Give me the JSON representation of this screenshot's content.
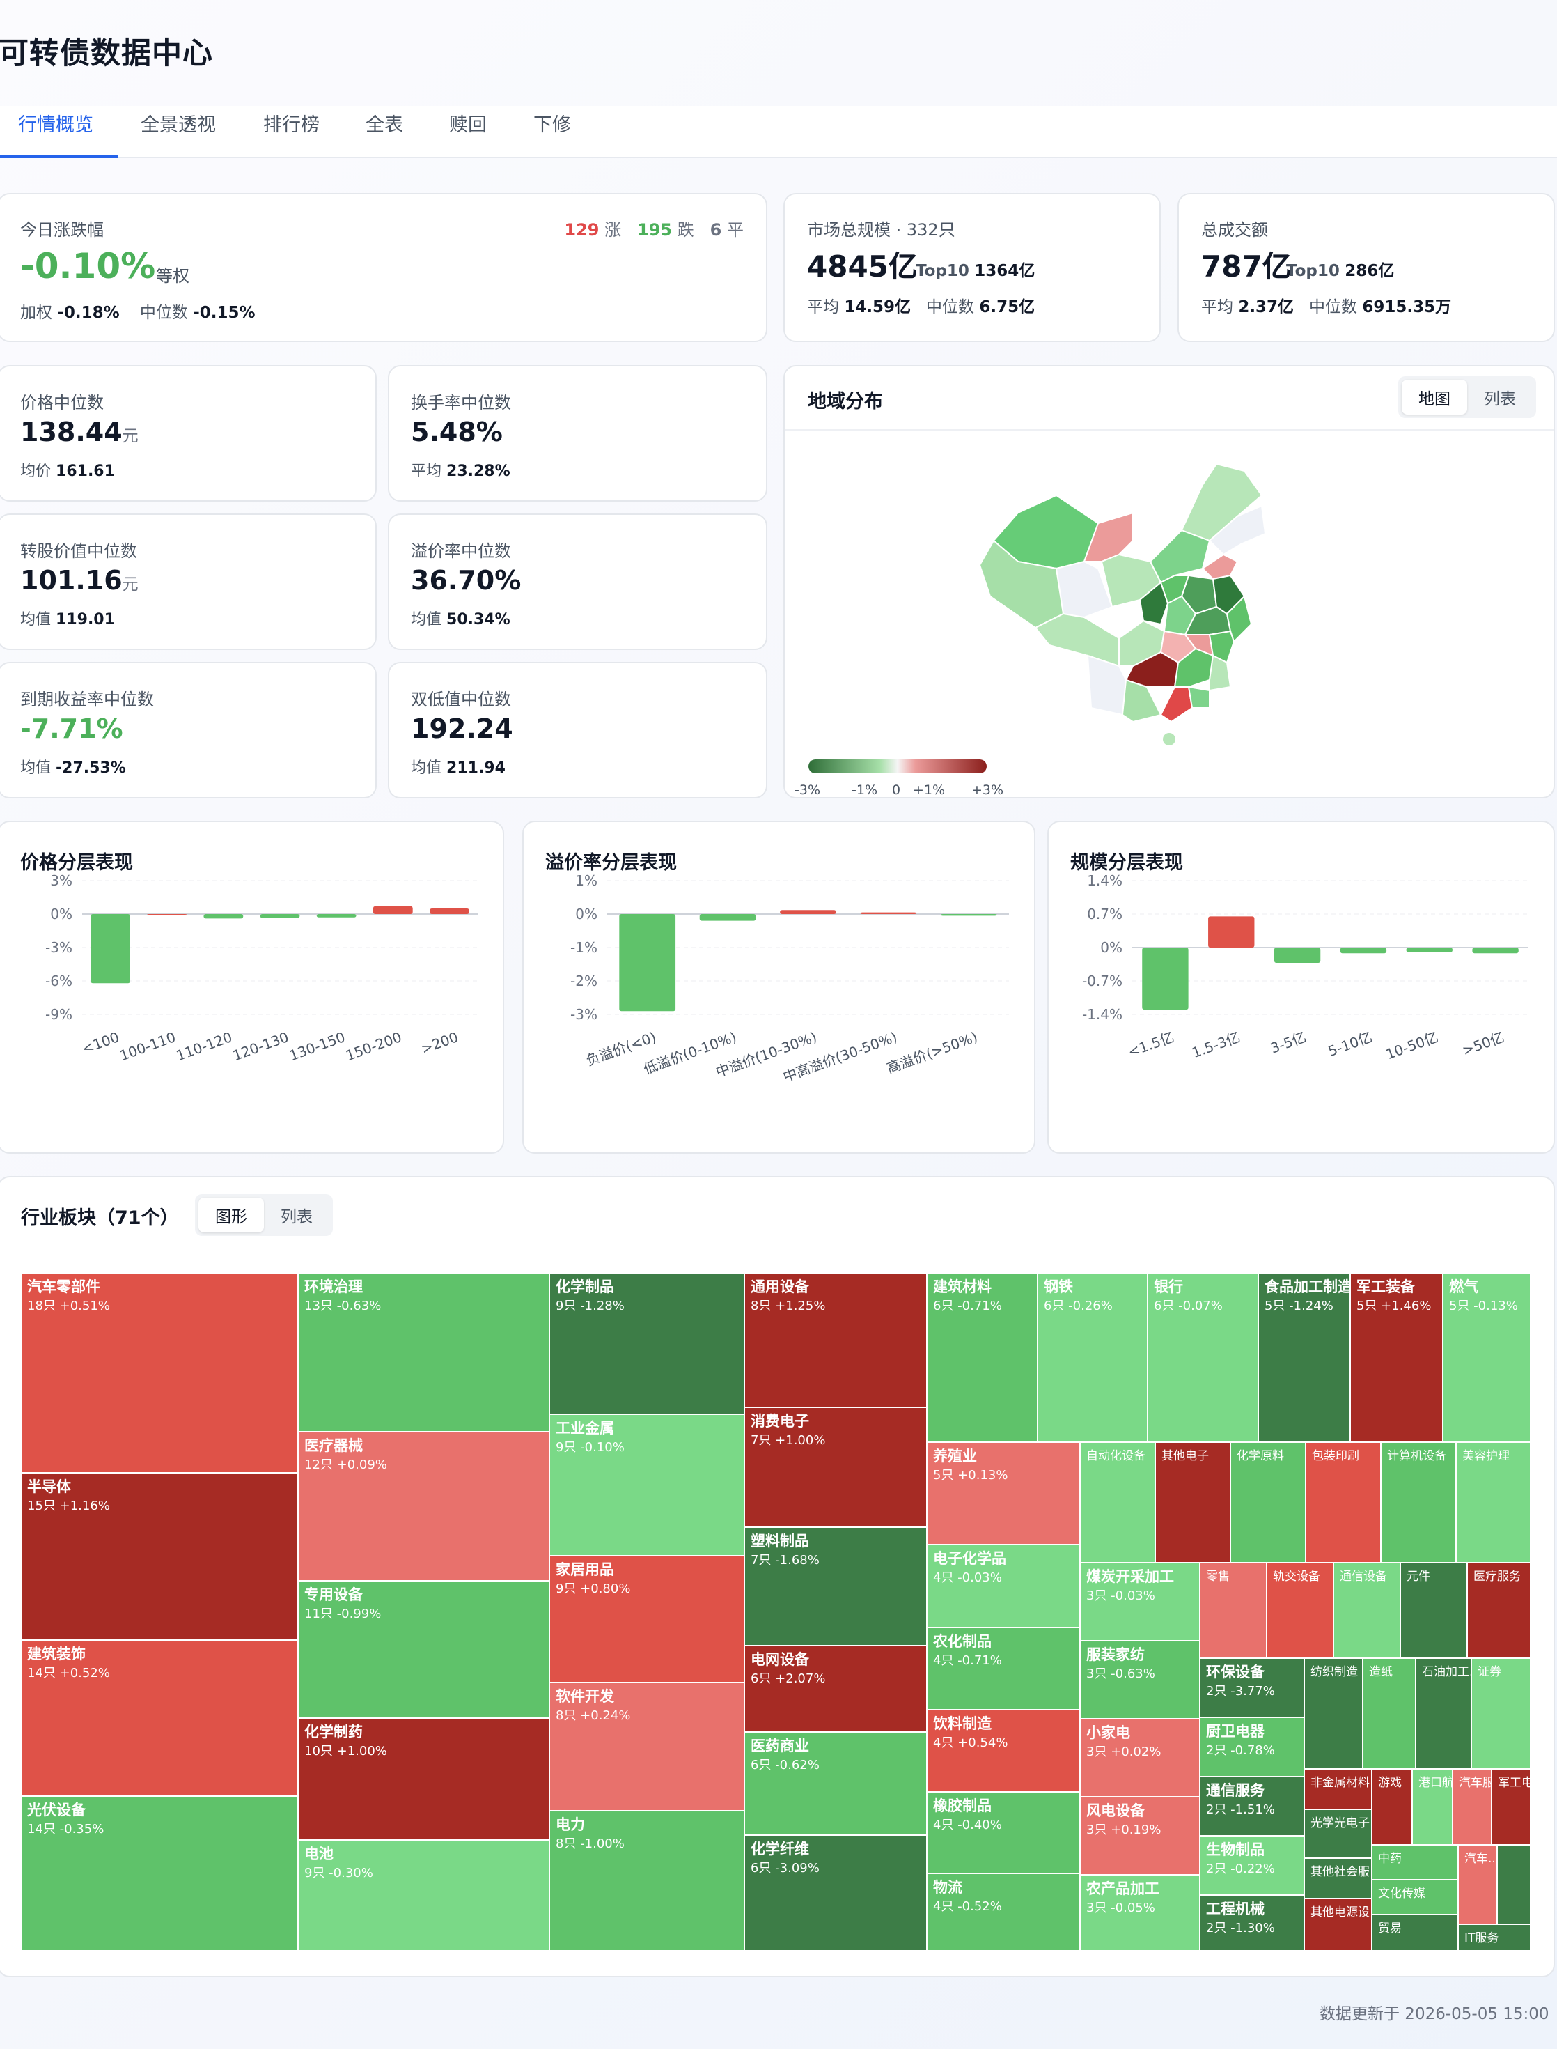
{
  "title": "可转债数据中心",
  "tabs": [
    "行情概览",
    "全景透视",
    "排行榜",
    "全表",
    "赎回",
    "下修"
  ],
  "today": {
    "label": "今日涨跌幅",
    "value": "-0.10%",
    "method": "等权",
    "up_count": "129",
    "up_label": "涨",
    "down_count": "195",
    "down_label": "跌",
    "flat_count": "6",
    "flat_label": "平",
    "weighted_label": "加权",
    "weighted": "-0.18%",
    "median_label": "中位数",
    "median": "-0.15%"
  },
  "market_size": {
    "label": "市场总规模 · 332只",
    "value": "4845亿",
    "top10_label": "Top10",
    "top10": "1364亿",
    "avg_label": "平均",
    "avg": "14.59亿",
    "median_label": "中位数",
    "median": "6.75亿"
  },
  "turnover": {
    "label": "总成交额",
    "value": "787亿",
    "top10_label": "Top10",
    "top10": "286亿",
    "avg_label": "平均",
    "avg": "2.37亿",
    "median_label": "中位数",
    "median": "6915.35万"
  },
  "stats": [
    {
      "label": "价格中位数",
      "value": "138.44",
      "unit": "元",
      "sub_label": "均价",
      "sub": "161.61",
      "neg": false
    },
    {
      "label": "换手率中位数",
      "value": "5.48%",
      "unit": "",
      "sub_label": "平均",
      "sub": "23.28%",
      "neg": false
    },
    {
      "label": "转股价值中位数",
      "value": "101.16",
      "unit": "元",
      "sub_label": "均值",
      "sub": "119.01",
      "neg": false
    },
    {
      "label": "溢价率中位数",
      "value": "36.70%",
      "unit": "",
      "sub_label": "均值",
      "sub": "50.34%",
      "neg": false
    },
    {
      "label": "到期收益率中位数",
      "value": "-7.71%",
      "unit": "",
      "sub_label": "均值",
      "sub": "-27.53%",
      "neg": true
    },
    {
      "label": "双低值中位数",
      "value": "192.24",
      "unit": "",
      "sub_label": "均值",
      "sub": "211.94",
      "neg": false
    }
  ],
  "region": {
    "title": "地域分布",
    "toggle": [
      "地图",
      "列表"
    ],
    "legend_ticks": [
      "-3%",
      "-1%",
      "0",
      "+1%",
      "+3%"
    ]
  },
  "chart_data": [
    {
      "type": "bar",
      "title": "价格分层表现",
      "categories": [
        "<100",
        "100-110",
        "110-120",
        "120-130",
        "130-150",
        "150-200",
        ">200"
      ],
      "values": [
        -6.2,
        0,
        -0.4,
        -0.35,
        -0.3,
        0.7,
        0.5
      ],
      "yticks": [
        "3%",
        "0%",
        "-3%",
        "-6%",
        "-9%"
      ],
      "ylim": [
        -9,
        3
      ]
    },
    {
      "type": "bar",
      "title": "溢价率分层表现",
      "categories": [
        "负溢价(<0)",
        "低溢价(0-10%)",
        "中溢价(10-30%)",
        "中高溢价(30-50%)",
        "高溢价(>50%)"
      ],
      "values": [
        -2.9,
        -0.2,
        0.12,
        0.05,
        -0.05
      ],
      "yticks": [
        "1%",
        "0%",
        "-1%",
        "-2%",
        "-3%"
      ],
      "ylim": [
        -3,
        1
      ]
    },
    {
      "type": "bar",
      "title": "规模分层表现",
      "categories": [
        "<1.5亿",
        "1.5-3亿",
        "3-5亿",
        "5-10亿",
        "10-50亿",
        ">50亿"
      ],
      "values": [
        -1.3,
        0.65,
        -0.32,
        -0.12,
        -0.1,
        -0.12
      ],
      "yticks": [
        "1.4%",
        "0.7%",
        "0%",
        "-0.7%",
        "-1.4%"
      ],
      "ylim": [
        -1.4,
        1.4
      ]
    }
  ],
  "industry": {
    "title": "行业板块（71个）",
    "toggle": [
      "图形",
      "列表"
    ],
    "items": [
      {
        "name": "汽车零部件",
        "sub": "18只 +0.51%",
        "color": "#df5248"
      },
      {
        "name": "半导体",
        "sub": "15只 +1.16%",
        "color": "#a62b24"
      },
      {
        "name": "建筑装饰",
        "sub": "14只 +0.52%",
        "color": "#df5248"
      },
      {
        "name": "光伏设备",
        "sub": "14只 -0.35%",
        "color": "#5fc26a"
      },
      {
        "name": "环境治理",
        "sub": "13只 -0.63%",
        "color": "#5fc26a"
      },
      {
        "name": "医疗器械",
        "sub": "12只 +0.09%",
        "color": "#e8716c"
      },
      {
        "name": "专用设备",
        "sub": "11只 -0.99%",
        "color": "#5fc26a"
      },
      {
        "name": "化学制药",
        "sub": "10只 +1.00%",
        "color": "#a62b24"
      },
      {
        "name": "电池",
        "sub": "9只 -0.30%",
        "color": "#7ad987"
      },
      {
        "name": "化学制品",
        "sub": "9只 -1.28%",
        "color": "#3d7d47"
      },
      {
        "name": "工业金属",
        "sub": "9只 -0.10%",
        "color": "#7ad987"
      },
      {
        "name": "家居用品",
        "sub": "9只 +0.80%",
        "color": "#df5248"
      },
      {
        "name": "软件开发",
        "sub": "8只 +0.24%",
        "color": "#e8716c"
      },
      {
        "name": "电力",
        "sub": "8只 -1.00%",
        "color": "#5fc26a"
      },
      {
        "name": "通用设备",
        "sub": "8只 +1.25%",
        "color": "#a62b24"
      },
      {
        "name": "消费电子",
        "sub": "7只 +1.00%",
        "color": "#a62b24"
      },
      {
        "name": "塑料制品",
        "sub": "7只 -1.68%",
        "color": "#3d7d47"
      },
      {
        "name": "电网设备",
        "sub": "6只 +2.07%",
        "color": "#a62b24"
      },
      {
        "name": "医药商业",
        "sub": "6只 -0.62%",
        "color": "#5fc26a"
      },
      {
        "name": "化学纤维",
        "sub": "6只 -3.09%",
        "color": "#3d7d47"
      },
      {
        "name": "建筑材料",
        "sub": "6只 -0.71%",
        "color": "#5fc26a"
      },
      {
        "name": "钢铁",
        "sub": "6只 -0.26%",
        "color": "#7ad987"
      },
      {
        "name": "银行",
        "sub": "6只 -0.07%",
        "color": "#7ad987"
      },
      {
        "name": "食品加工制造",
        "sub": "5只 -1.24%",
        "color": "#3d7d47"
      },
      {
        "name": "军工装备",
        "sub": "5只 +1.46%",
        "color": "#a62b24"
      },
      {
        "name": "燃气",
        "sub": "5只 -0.13%",
        "color": "#7ad987"
      },
      {
        "name": "养殖业",
        "sub": "5只 +0.13%",
        "color": "#e8716c"
      },
      {
        "name": "电子化学品",
        "sub": "4只 -0.03%",
        "color": "#7ad987"
      },
      {
        "name": "农化制品",
        "sub": "4只 -0.71%",
        "color": "#5fc26a"
      },
      {
        "name": "饮料制造",
        "sub": "4只 +0.54%",
        "color": "#df5248"
      },
      {
        "name": "橡胶制品",
        "sub": "4只 -0.40%",
        "color": "#5fc26a"
      },
      {
        "name": "物流",
        "sub": "4只 -0.52%",
        "color": "#5fc26a"
      },
      {
        "name": "自动化设备",
        "sub": "",
        "color": "#7ad987"
      },
      {
        "name": "其他电子",
        "sub": "",
        "color": "#a62b24"
      },
      {
        "name": "化学原料",
        "sub": "",
        "color": "#5fc26a"
      },
      {
        "name": "包装印刷",
        "sub": "",
        "color": "#df5248"
      },
      {
        "name": "计算机设备",
        "sub": "",
        "color": "#5fc26a"
      },
      {
        "name": "美容护理",
        "sub": "",
        "color": "#7ad987"
      },
      {
        "name": "煤炭开采加工",
        "sub": "3只 -0.03%",
        "color": "#7ad987"
      },
      {
        "name": "服装家纺",
        "sub": "3只 -0.63%",
        "color": "#5fc26a"
      },
      {
        "name": "小家电",
        "sub": "3只 +0.02%",
        "color": "#e8716c"
      },
      {
        "name": "风电设备",
        "sub": "3只 +0.19%",
        "color": "#e8716c"
      },
      {
        "name": "农产品加工",
        "sub": "3只 -0.05%",
        "color": "#7ad987"
      },
      {
        "name": "零售",
        "sub": "",
        "color": "#e8716c"
      },
      {
        "name": "轨交设备",
        "sub": "",
        "color": "#df5248"
      },
      {
        "name": "通信设备",
        "sub": "",
        "color": "#7ad987"
      },
      {
        "name": "元件",
        "sub": "",
        "color": "#3d7d47"
      },
      {
        "name": "医疗服务",
        "sub": "",
        "color": "#a62b24"
      },
      {
        "name": "环保设备",
        "sub": "2只 -3.77%",
        "color": "#3d7d47"
      },
      {
        "name": "厨卫电器",
        "sub": "2只 -0.78%",
        "color": "#5fc26a"
      },
      {
        "name": "通信服务",
        "sub": "2只 -1.51%",
        "color": "#3d7d47"
      },
      {
        "name": "生物制品",
        "sub": "2只 -0.22%",
        "color": "#7ad987"
      },
      {
        "name": "工程机械",
        "sub": "2只 -1.30%",
        "color": "#3d7d47"
      },
      {
        "name": "纺织制造",
        "sub": "",
        "color": "#3d7d47"
      },
      {
        "name": "造纸",
        "sub": "",
        "color": "#5fc26a"
      },
      {
        "name": "石油加工...",
        "sub": "",
        "color": "#3d7d47"
      },
      {
        "name": "证券",
        "sub": "",
        "color": "#7ad987"
      },
      {
        "name": "非金属材料",
        "sub": "",
        "color": "#a62b24"
      },
      {
        "name": "游戏",
        "sub": "",
        "color": "#a62b24"
      },
      {
        "name": "港口航",
        "sub": "",
        "color": "#7ad987"
      },
      {
        "name": "汽车服",
        "sub": "",
        "color": "#e8716c"
      },
      {
        "name": "军工电",
        "sub": "",
        "color": "#a62b24"
      },
      {
        "name": "光学光电子",
        "sub": "",
        "color": "#3d7d47"
      },
      {
        "name": "中药",
        "sub": "",
        "color": "#5fc26a"
      },
      {
        "name": "汽车...",
        "sub": "",
        "color": "#e8716c"
      },
      {
        "name": "其他社会服",
        "sub": "",
        "color": "#3d7d47"
      },
      {
        "name": "文化传媒",
        "sub": "",
        "color": "#5fc26a"
      },
      {
        "name": "其他电源设",
        "sub": "",
        "color": "#a62b24"
      },
      {
        "name": "贸易",
        "sub": "",
        "color": "#3d7d47"
      },
      {
        "name": "IT服务",
        "sub": "",
        "color": "#3d7d47"
      },
      {
        "name": "",
        "sub": "",
        "color": "#3d7d47"
      }
    ]
  },
  "footer": "数据更新于 2026-05-05 15:00"
}
